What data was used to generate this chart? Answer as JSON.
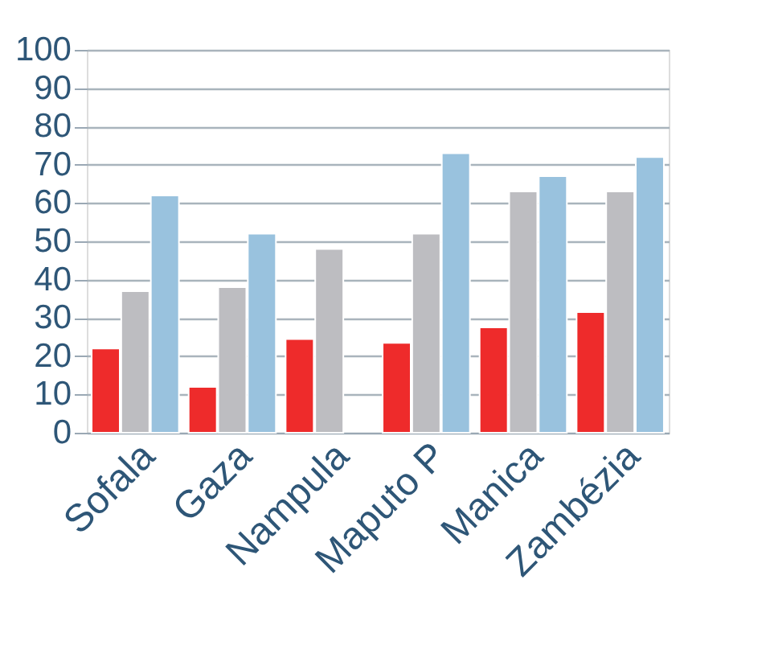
{
  "chart_data": {
    "type": "bar",
    "categories": [
      "Sofala",
      "Gaza",
      "Nampula",
      "Maputo P",
      "Manica",
      "Zambézia"
    ],
    "series": [
      {
        "color": "#ee2b2b",
        "values": [
          22,
          12,
          24.5,
          23.5,
          27.5,
          31.5
        ]
      },
      {
        "color": "#bdbdc1",
        "values": [
          37,
          38,
          48,
          52,
          63,
          63
        ]
      },
      {
        "color": "#99c2de",
        "values": [
          62,
          52,
          null,
          73,
          67,
          72
        ]
      }
    ],
    "ylim": [
      0,
      100
    ],
    "yticks": [
      0,
      10,
      20,
      30,
      40,
      50,
      60,
      70,
      80,
      90,
      100
    ],
    "grid": "y",
    "legend": false
  }
}
